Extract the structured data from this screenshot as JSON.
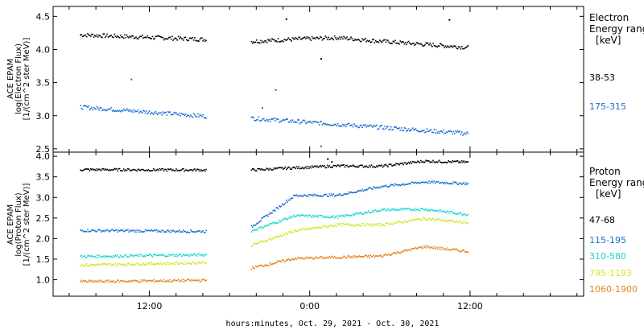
{
  "chart_data": [
    {
      "type": "scatter",
      "panel": "electron",
      "ylabel": [
        "ACE EPAM",
        "log(Electron Flux)",
        "[1/(cm^2 ster MeV)]"
      ],
      "ylim": [
        2.45,
        4.65
      ],
      "yticks": [
        "2.5",
        "3.0",
        "3.5",
        "4.0",
        "4.5"
      ],
      "legend": {
        "title": [
          "Electron",
          "Energy ranges",
          "[keV]"
        ],
        "entries": [
          {
            "label": "38-53",
            "color": "#000000"
          },
          {
            "label": "175-315",
            "color": "#1a6fd0"
          }
        ]
      },
      "series": [
        {
          "name": "38-53",
          "color": "#000000",
          "segments": [
            {
              "x": [
                6.8,
                16.2
              ],
              "y": [
                4.23,
                4.16
              ]
            },
            {
              "x": [
                19.6,
                35.8
              ],
              "y": [
                4.13,
                4.05
              ]
            }
          ],
          "profile": [
            0,
            0.05,
            0.09,
            0.05,
            0.02,
            -0.01
          ]
        },
        {
          "name": "175-315",
          "color": "#1a6fd0",
          "segments": [
            {
              "x": [
                6.8,
                16.2
              ],
              "y": [
                3.14,
                3.0
              ]
            },
            {
              "x": [
                19.6,
                35.8
              ],
              "y": [
                2.97,
                2.74
              ]
            }
          ],
          "profile": [
            0,
            0,
            0,
            0,
            0,
            0
          ]
        }
      ],
      "outliers": [
        {
          "x": 22.2,
          "y": 4.47,
          "color": "#000000"
        },
        {
          "x": 24.8,
          "y": 3.87,
          "color": "#000000"
        },
        {
          "x": 34.4,
          "y": 4.46,
          "color": "#000000"
        },
        {
          "x": 10.6,
          "y": 3.56,
          "color": "#1a6fd0"
        },
        {
          "x": 21.4,
          "y": 3.4,
          "color": "#1a6fd0"
        },
        {
          "x": 20.4,
          "y": 3.13,
          "color": "#1a6fd0"
        },
        {
          "x": 24.8,
          "y": 2.55,
          "color": "#1a6fd0"
        }
      ]
    },
    {
      "type": "scatter",
      "panel": "proton",
      "ylabel": [
        "ACE EPAM",
        "log(Proton Flux)",
        "[1/(cm^2 ster MeV)]"
      ],
      "ylim": [
        0.6,
        4.1
      ],
      "yticks": [
        "1.0",
        "1.5",
        "2.0",
        "2.5",
        "3.0",
        "3.5",
        "4.0"
      ],
      "legend": {
        "title": [
          "Proton",
          "Energy ranges",
          "[keV]"
        ],
        "entries": [
          {
            "label": "47-68",
            "color": "#000000"
          },
          {
            "label": "115-195",
            "color": "#1a6fd0"
          },
          {
            "label": "310-580",
            "color": "#18d6d0"
          },
          {
            "label": "795-1193",
            "color": "#cfe82a"
          },
          {
            "label": "1060-1900",
            "color": "#e6821e"
          }
        ]
      },
      "series": [
        {
          "name": "47-68",
          "color": "#000000",
          "segments": [
            {
              "x": [
                6.8,
                16.2
              ],
              "y": [
                3.69,
                3.68
              ]
            },
            {
              "x": [
                19.6,
                35.8
              ],
              "y": [
                3.68,
                3.75
              ]
            }
          ],
          "profile": [
            0,
            0.04,
            0.07,
            0.05,
            0.16,
            0.12
          ]
        },
        {
          "name": "115-195",
          "color": "#1a6fd0",
          "segments": [
            {
              "x": [
                6.8,
                16.2
              ],
              "y": [
                2.21,
                2.19
              ]
            },
            {
              "x": [
                19.6,
                35.8
              ],
              "y": [
                2.3,
                3.1
              ]
            }
          ],
          "profile": [
            0,
            0.6,
            0.45,
            0.5,
            0.45,
            0.25
          ]
        },
        {
          "name": "310-580",
          "color": "#18d6d0",
          "segments": [
            {
              "x": [
                6.8,
                16.2
              ],
              "y": [
                1.58,
                1.62
              ]
            },
            {
              "x": [
                19.6,
                35.8
              ],
              "y": [
                2.2,
                2.55
              ]
            }
          ],
          "profile": [
            0,
            0.3,
            0.2,
            0.3,
            0.25,
            0.05
          ]
        },
        {
          "name": "795-1193",
          "color": "#cfe82a",
          "segments": [
            {
              "x": [
                6.8,
                16.2
              ],
              "y": [
                1.37,
                1.43
              ]
            },
            {
              "x": [
                19.6,
                35.8
              ],
              "y": [
                1.85,
                2.35
              ]
            }
          ],
          "profile": [
            0,
            0.25,
            0.3,
            0.2,
            0.25,
            0.05
          ]
        },
        {
          "name": "1060-1900",
          "color": "#e6821e",
          "segments": [
            {
              "x": [
                6.8,
                16.2
              ],
              "y": [
                0.97,
                1.0
              ]
            },
            {
              "x": [
                19.6,
                35.8
              ],
              "y": [
                1.3,
                1.7
              ]
            }
          ],
          "profile": [
            0,
            0.15,
            0.1,
            0.05,
            0.2,
            0.0
          ]
        }
      ],
      "outliers": [
        {
          "x": 25.3,
          "y": 3.95,
          "color": "#000000"
        },
        {
          "x": 25.6,
          "y": 3.88,
          "color": "#000000"
        }
      ]
    }
  ],
  "x_axis": {
    "title": "hours:minutes, Oct. 29, 2021 - Oct. 30, 2021",
    "range_hours": [
      4.8,
      44.5
    ],
    "ticks": [
      {
        "hours": 12,
        "label": "12:00"
      },
      {
        "hours": 24,
        "label": "0:00"
      },
      {
        "hours": 36,
        "label": "12:00"
      }
    ]
  }
}
